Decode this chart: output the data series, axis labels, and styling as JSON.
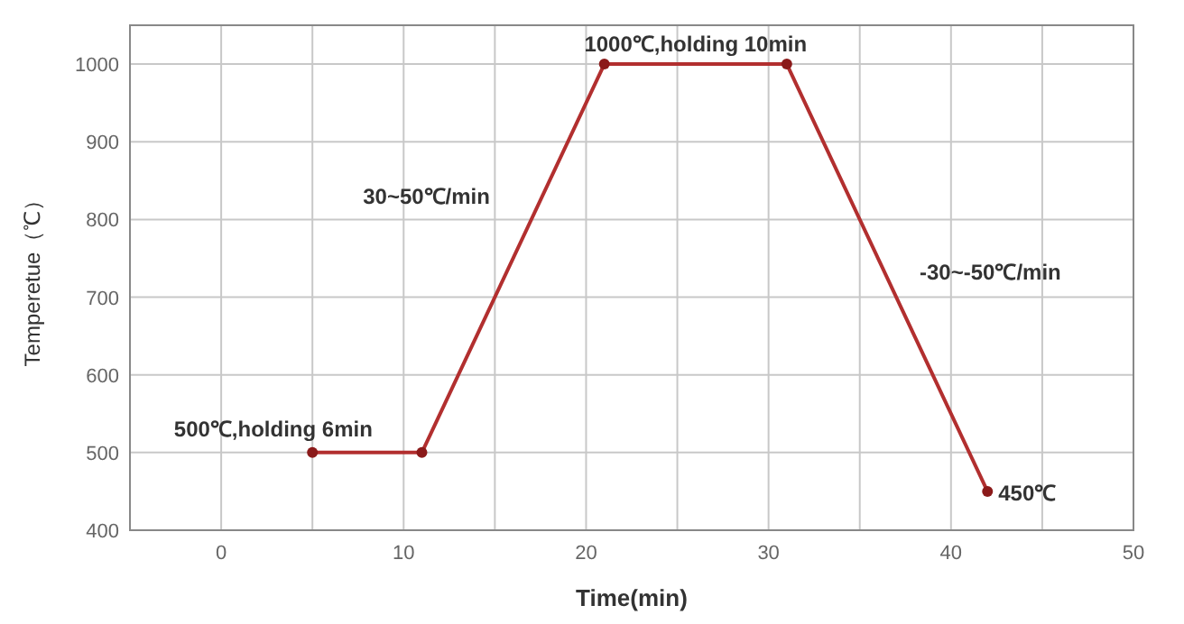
{
  "chart_data": {
    "type": "line",
    "xlabel": "Time(min)",
    "ylabel": "Temperetue（℃）",
    "x": [
      5,
      11,
      21,
      31,
      42
    ],
    "series": [
      {
        "color": "#b22f2f",
        "values": [
          500,
          500,
          1000,
          1000,
          450
        ]
      }
    ],
    "xlim": [
      -5,
      50
    ],
    "xticks": [
      0,
      {
        "value": 5,
        "label": null
      },
      10,
      {
        "value": 15,
        "label": null
      },
      20,
      {
        "value": 25,
        "label": null
      },
      30,
      {
        "value": 35,
        "label": null
      },
      40,
      {
        "value": 45,
        "label": null
      },
      50
    ],
    "ylim": [
      400,
      1050
    ],
    "yticks": [
      400,
      500,
      600,
      700,
      800,
      900,
      1000
    ],
    "grid": true,
    "marker": "circle",
    "line_style": "solid",
    "annotations": [
      {
        "text": "500℃,holding 6min",
        "x": 8,
        "y": 500
      },
      {
        "text": "30~50℃/min",
        "x": 16,
        "y": 750
      },
      {
        "text": "1000℃,holding 10min",
        "x": 26,
        "y": 1000
      },
      {
        "text": "-30~-50℃/min",
        "x": 36.5,
        "y": 725
      },
      {
        "text": "450℃",
        "x": 42,
        "y": 450
      }
    ]
  }
}
